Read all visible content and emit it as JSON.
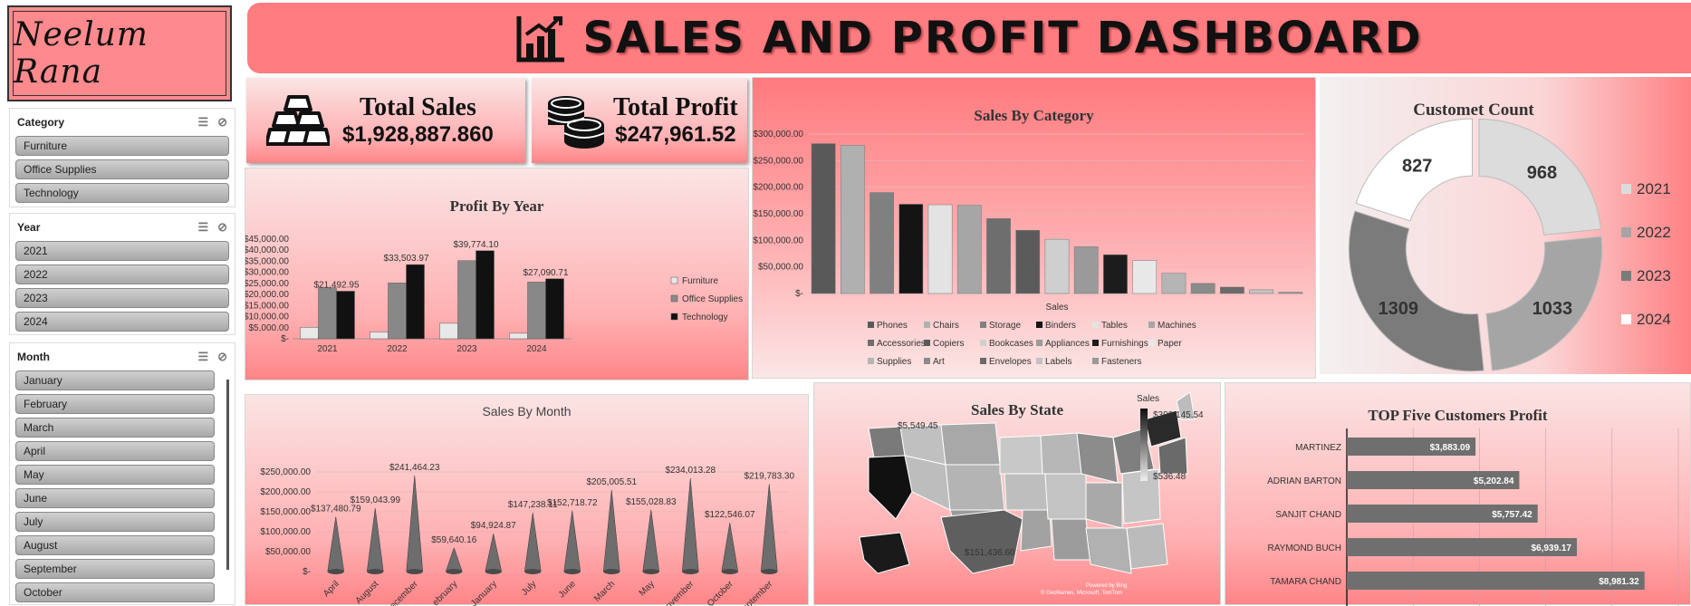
{
  "logo": {
    "text": "Neelum Rana"
  },
  "header": {
    "title": "SALES AND PROFIT DASHBOARD",
    "icon": "bar-chart-icon"
  },
  "kpis": [
    {
      "label": "Total Sales",
      "value": "$1,928,887.860",
      "icon": "gold-bars-icon"
    },
    {
      "label": "Total Profit",
      "value": "$247,961.52",
      "icon": "coins-icon"
    }
  ],
  "slicers": {
    "category": {
      "title": "Category",
      "items": [
        "Furniture",
        "Office Supplies",
        "Technology"
      ]
    },
    "year": {
      "title": "Year",
      "items": [
        "2021",
        "2022",
        "2023",
        "2024"
      ]
    },
    "month": {
      "title": "Month",
      "items": [
        "January",
        "February",
        "March",
        "April",
        "May",
        "June",
        "July",
        "August",
        "September",
        "October"
      ]
    }
  },
  "colors": {
    "accent": "#ff7c80",
    "dark": "#111111",
    "mid": "#7a7a7a",
    "light": "#e6e6e6"
  },
  "chart_data": [
    {
      "id": "profit_by_year",
      "type": "bar",
      "title": "Profit By Year",
      "categories": [
        "2021",
        "2022",
        "2023",
        "2024"
      ],
      "series": [
        {
          "name": "Furniture",
          "values": [
            5200,
            3100,
            7000,
            2500
          ],
          "color": "#e8e8e8"
        },
        {
          "name": "Office Supplies",
          "values": [
            23100,
            25200,
            35300,
            25600
          ],
          "color": "#888888"
        },
        {
          "name": "Technology",
          "values": [
            21492.95,
            33503.97,
            39774.1,
            27090.71
          ],
          "color": "#111111"
        }
      ],
      "data_labels": [
        "$21,492.95",
        "$33,503.97",
        "$39,774.10",
        "$27,090.71"
      ],
      "yticks": [
        "$-",
        "$5,000.00",
        "$10,000.00",
        "$15,000.00",
        "$20,000.00",
        "$25,000.00",
        "$30,000.00",
        "$35,000.00",
        "$40,000.00",
        "$45,000.00"
      ],
      "ylim": [
        0,
        45000
      ]
    },
    {
      "id": "sales_by_category",
      "type": "bar",
      "title": "Sales By Category",
      "xlabel": "Sales",
      "categories": [
        "Phones",
        "Chairs",
        "Storage",
        "Binders",
        "Tables",
        "Machines",
        "Accessories",
        "Copiers",
        "Bookcases",
        "Appliances",
        "Furnishings",
        "Paper",
        "Supplies",
        "Art",
        "Envelopes",
        "Labels",
        "Fasteners"
      ],
      "values": [
        282000,
        279000,
        190000,
        168000,
        167000,
        166000,
        141000,
        119000,
        102000,
        88000,
        73000,
        62000,
        38000,
        19000,
        12000,
        7000,
        2500
      ],
      "colors": [
        "#595959",
        "#b0b0b0",
        "#808080",
        "#141414",
        "#e3e3e3",
        "#a6a6a6",
        "#6e6e6e",
        "#5b5b5b",
        "#cfcfcf",
        "#9a9a9a",
        "#1c1c1c",
        "#e8e8e8",
        "#b5b5b5",
        "#8b8b8b",
        "#6a6a6a",
        "#c2c2c2",
        "#999999"
      ],
      "yticks": [
        "$-",
        "$50,000.00",
        "$100,000.00",
        "$150,000.00",
        "$200,000.00",
        "$250,000.00",
        "$300,000.00"
      ],
      "ylim": [
        0,
        300000
      ]
    },
    {
      "id": "customer_count",
      "type": "pie",
      "title": "Customet Count",
      "labels": [
        "2021",
        "2022",
        "2023",
        "2024"
      ],
      "values": [
        968,
        1033,
        1309,
        827
      ],
      "colors": [
        "#dcdcdc",
        "#a5a5a5",
        "#7b7b7b",
        "#ffffff"
      ]
    },
    {
      "id": "sales_by_month",
      "type": "bar",
      "title": "Sales By Month",
      "categories": [
        "April",
        "August",
        "December",
        "February",
        "January",
        "July",
        "June",
        "March",
        "May",
        "November",
        "October",
        "September"
      ],
      "values": [
        137480.79,
        159043.99,
        241464.23,
        59640.16,
        94924.87,
        147238.11,
        152718.72,
        205005.51,
        155028.83,
        234013.28,
        122546.07,
        219783.3
      ],
      "data_labels": [
        "$137,480.79",
        "$159,043.99",
        "$241,464.23",
        "$59,640.16",
        "$94,924.87",
        "$147,238.11",
        "$152,718.72",
        "$205,005.51",
        "$155,028.83",
        "$234,013.28",
        "$122,546.07",
        "$219,783.30"
      ],
      "tick_labels": [
        "April",
        "August",
        "ecember",
        "ebruary",
        "January",
        "July",
        "June",
        "March",
        "May",
        "ovember",
        "October",
        "eptember"
      ],
      "yticks": [
        "$-",
        "$50,000.00",
        "$100,000.00",
        "$150,000.00",
        "$200,000.00",
        "$250,000.00"
      ],
      "ylim": [
        0,
        250000
      ]
    },
    {
      "id": "sales_by_state",
      "type": "heatmap",
      "title": "Sales By State",
      "legend_title": "Sales",
      "legend_max": "$390,145.54",
      "legend_min": "$536.48",
      "annotations": [
        "$5,549.45",
        "$151,436.60"
      ],
      "credit": [
        "Powered by Bing",
        "© GeoNames, Microsoft, TomTom"
      ]
    },
    {
      "id": "top_five_customers",
      "type": "bar",
      "title": "TOP Five Customers Profit",
      "categories": [
        "MARTINEZ",
        "ADRIAN BARTON",
        "SANJIT CHAND",
        "RAYMOND BUCH",
        "TAMARA CHAND"
      ],
      "values": [
        3883.09,
        5202.84,
        5757.42,
        6939.17,
        8981.32
      ],
      "data_labels": [
        "$3,883.09",
        "$5,202.84",
        "$5,757.42",
        "$6,939.17",
        "$8,981.32"
      ],
      "xlim": [
        0,
        10000
      ]
    }
  ]
}
